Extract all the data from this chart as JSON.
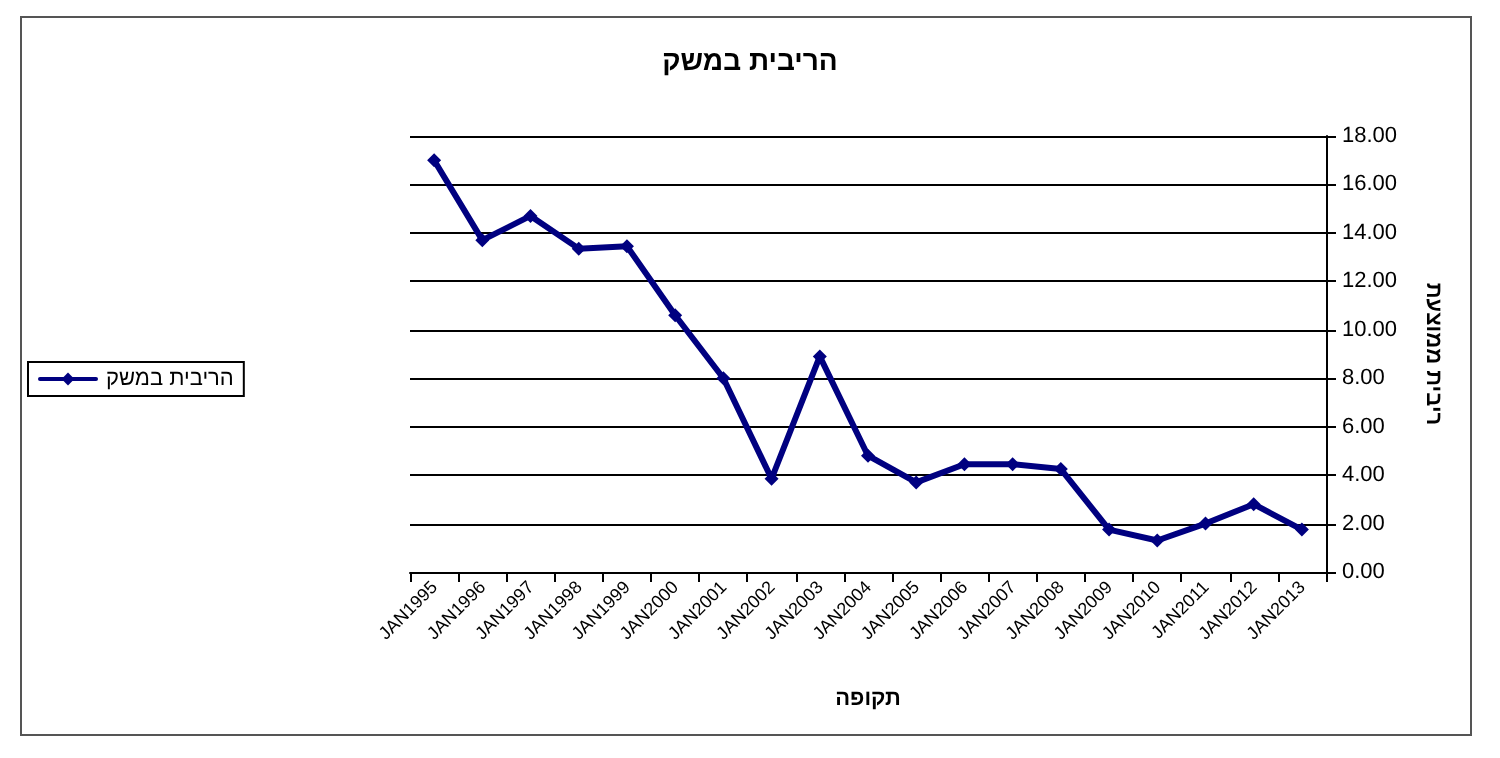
{
  "chart_data": {
    "type": "line",
    "title": "הריבית במשק",
    "xlabel": "תקופה",
    "ylabel": "ריבית ממוצעת",
    "categories": [
      "JAN1995",
      "JAN1996",
      "JAN1997",
      "JAN1998",
      "JAN1999",
      "JAN2000",
      "JAN2001",
      "JAN2002",
      "JAN2003",
      "JAN2004",
      "JAN2005",
      "JAN2006",
      "JAN2007",
      "JAN2008",
      "JAN2009",
      "JAN2010",
      "JAN2011",
      "JAN2012",
      "JAN2013"
    ],
    "series": [
      {
        "name": "הריבית במשק",
        "color": "#000080",
        "values": [
          17.0,
          13.7,
          14.7,
          13.35,
          13.45,
          10.6,
          8.0,
          3.85,
          8.9,
          4.8,
          3.7,
          4.45,
          4.45,
          4.25,
          1.75,
          1.3,
          2.0,
          2.8,
          1.75
        ]
      }
    ],
    "ylim": [
      0,
      18
    ],
    "yticks": [
      {
        "value": 0,
        "label": "0.00"
      },
      {
        "value": 2,
        "label": "2.00"
      },
      {
        "value": 4,
        "label": "4.00"
      },
      {
        "value": 6,
        "label": "6.00"
      },
      {
        "value": 8,
        "label": "8.00"
      },
      {
        "value": 10,
        "label": "10.00"
      },
      {
        "value": 12,
        "label": "12.00"
      },
      {
        "value": 14,
        "label": "14.00"
      },
      {
        "value": 16,
        "label": "16.00"
      },
      {
        "value": 18,
        "label": "18.00"
      }
    ],
    "grid": "y",
    "legend": "left",
    "marker": "diamond",
    "line_style": "solid"
  }
}
